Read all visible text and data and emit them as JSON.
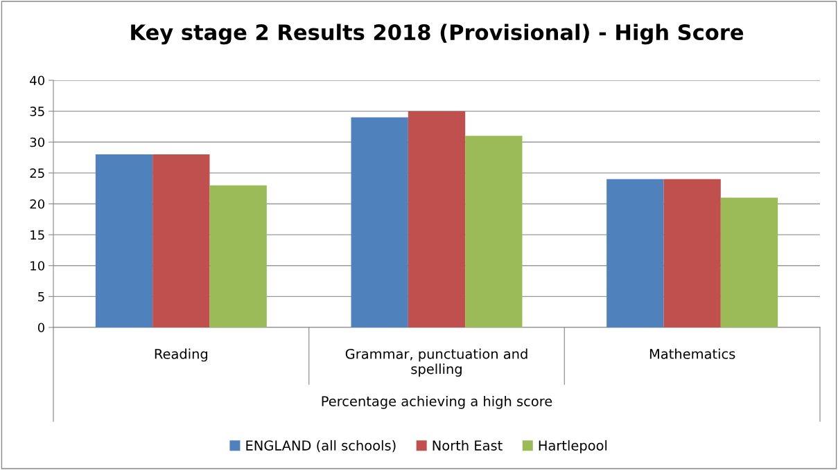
{
  "chart_data": {
    "type": "bar",
    "title": "Key stage 2 Results 2018 (Provisional) - High Score",
    "xlabel": "Percentage achieving a high score",
    "categories": [
      "Reading",
      "Grammar, punctuation and\nspelling",
      "Mathematics"
    ],
    "series": [
      {
        "name": "ENGLAND (all schools)",
        "color": "#4f81bd",
        "values": [
          28,
          34,
          24
        ]
      },
      {
        "name": "North East",
        "color": "#c0504d",
        "values": [
          28,
          35,
          24
        ]
      },
      {
        "name": "Hartlepool",
        "color": "#9bbb59",
        "values": [
          23,
          31,
          21
        ]
      }
    ],
    "ylim": [
      0,
      40
    ],
    "yticks": [
      0,
      5,
      10,
      15,
      20,
      25,
      30,
      35,
      40
    ],
    "grid": "y",
    "legend": "bottom"
  }
}
